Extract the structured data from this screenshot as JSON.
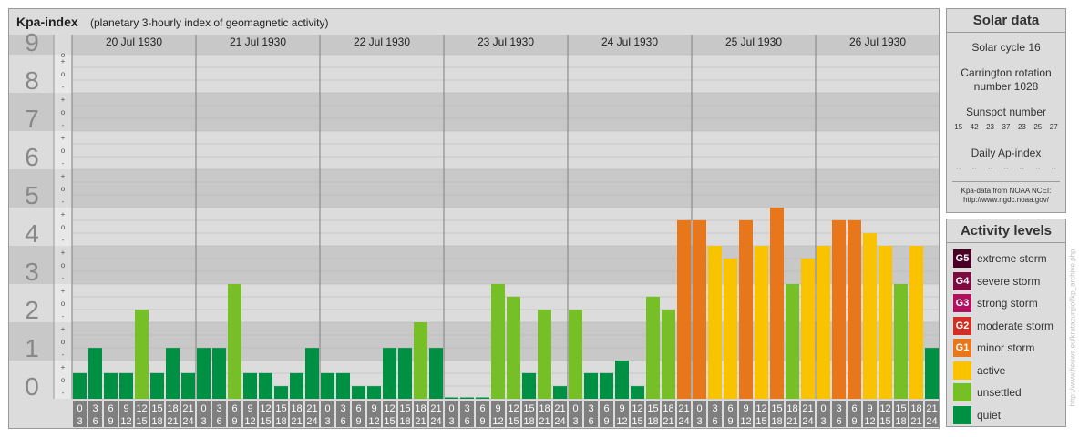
{
  "chart_data": {
    "type": "bar",
    "title": "Kpa-index",
    "subtitle": "(planetary 3-hourly index of geomagnetic activity)",
    "ylim": [
      0,
      9
    ],
    "y_ticks": [
      "0",
      "1",
      "2",
      "3",
      "4",
      "5",
      "6",
      "7",
      "8",
      "9"
    ],
    "minor_tick_labels": [
      "-",
      "o",
      "+"
    ],
    "days": [
      "20 Jul 1930",
      "21 Jul 1930",
      "22 Jul 1930",
      "23 Jul 1930",
      "24 Jul 1930",
      "25 Jul 1930",
      "26 Jul 1930"
    ],
    "hour_labels": [
      [
        "0",
        "3"
      ],
      [
        "3",
        "6"
      ],
      [
        "6",
        "9"
      ],
      [
        "9",
        "12"
      ],
      [
        "12",
        "15"
      ],
      [
        "15",
        "18"
      ],
      [
        "18",
        "21"
      ],
      [
        "21",
        "24"
      ]
    ],
    "values": [
      [
        0.67,
        1.33,
        0.67,
        0.67,
        2.33,
        0.67,
        1.33,
        0.67
      ],
      [
        1.33,
        1.33,
        3.0,
        0.67,
        0.67,
        0.33,
        0.67,
        1.33
      ],
      [
        0.67,
        0.67,
        0.33,
        0.33,
        1.33,
        1.33,
        2.0,
        1.33
      ],
      [
        0.0,
        0.0,
        0.0,
        3.0,
        2.67,
        0.67,
        2.33,
        0.33
      ],
      [
        2.33,
        0.67,
        0.67,
        1.0,
        0.33,
        2.67,
        2.33,
        4.67
      ],
      [
        4.67,
        4.0,
        3.67,
        4.67,
        4.0,
        5.0,
        3.0,
        3.67
      ],
      [
        4.0,
        4.67,
        4.67,
        4.33,
        4.0,
        3.0,
        4.0,
        1.33
      ]
    ]
  },
  "colors": {
    "quiet": "#009044",
    "unsettled": "#77bf26",
    "active": "#f9c300",
    "minor_storm": "#e8761a",
    "moderate_storm": "#d12f25",
    "strong_storm": "#b3105f",
    "severe_storm": "#7d0c40",
    "extreme_storm": "#4a0025"
  },
  "solar": {
    "title": "Solar data",
    "cycle": "Solar cycle 16",
    "carrington_line1": "Carrington rotation",
    "carrington_line2": "number 1028",
    "sunspot_title": "Sunspot number",
    "sunspot_values": [
      "15",
      "42",
      "23",
      "37",
      "23",
      "25",
      "27"
    ],
    "ap_title": "Daily Ap-index",
    "ap_values": [
      "--",
      "--",
      "--",
      "--",
      "--",
      "--",
      "--"
    ],
    "source_line1": "Kpa-data from NOAA NCEI:",
    "source_line2": "http://www.ngdc.noaa.gov/"
  },
  "levels": {
    "title": "Activity levels",
    "items": [
      {
        "badge": "G5",
        "label": "extreme storm",
        "color": "#4a0025"
      },
      {
        "badge": "G4",
        "label": "severe storm",
        "color": "#7d0c40"
      },
      {
        "badge": "G3",
        "label": "strong storm",
        "color": "#b3105f"
      },
      {
        "badge": "G2",
        "label": "moderate storm",
        "color": "#d12f25"
      },
      {
        "badge": "G1",
        "label": "minor storm",
        "color": "#e8761a"
      },
      {
        "badge": "",
        "label": "active",
        "color": "#f9c300"
      },
      {
        "badge": "",
        "label": "unsettled",
        "color": "#77bf26"
      },
      {
        "badge": "",
        "label": "quiet",
        "color": "#009044"
      }
    ]
  },
  "watermark": "http://www.fieuws.eu/kratazurgiol/kp_archive.php"
}
